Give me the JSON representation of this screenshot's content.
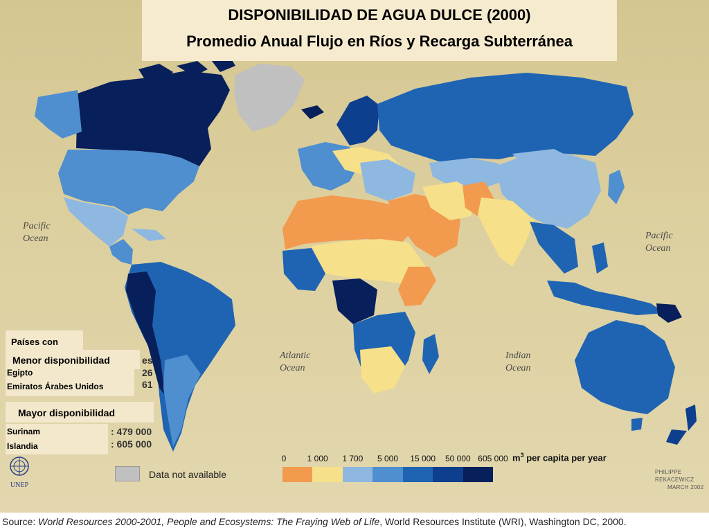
{
  "title": {
    "line1": "DISPONIBILIDAD DE AGUA DULCE (2000)",
    "line2": "Promedio Anual Flujo en Ríos y Recarga Subterránea"
  },
  "oceans": {
    "pacific_left": [
      "Pacific",
      "Ocean"
    ],
    "pacific_right": [
      "Pacific",
      "Ocean"
    ],
    "atlantic": [
      "Atlantic",
      "Ocean"
    ],
    "indian": [
      "Indian",
      "Ocean"
    ]
  },
  "panel": {
    "heading": "Países con",
    "lowest_heading": "Menor disponibilidad",
    "lowest_countries": [
      "Egipto",
      "Emiratos Árabes Unidos"
    ],
    "highest_heading": "Mayor disponibilidad",
    "highest_countries": [
      "Surinam",
      "Islandia"
    ],
    "underlying_values": [
      "es",
      "26",
      "61",
      ": 479 000",
      ": 605 000"
    ]
  },
  "legend": {
    "ticks": [
      "0",
      "1 000",
      "1 700",
      "5 000",
      "15 000",
      "50 000",
      "605 000"
    ],
    "unit_prefix": "m",
    "unit_exp": "3",
    "unit_suffix": " per capita per year",
    "colors": [
      "#f29a4e",
      "#f7e08a",
      "#8fb8e0",
      "#4f8fd0",
      "#1f64b2",
      "#0e3f8e",
      "#071f5a"
    ],
    "na_color": "#c0c0c0",
    "na_label": "Data not available"
  },
  "credit": [
    "PHILIPPE REKACEWICZ",
    "MARCH 2002"
  ],
  "logo_label": "UNEP",
  "source": {
    "prefix": "Source: ",
    "work": "World Resources 2000-2001, People and Ecosystems: The Fraying Web of Life",
    "suffix": ", World Resources Institute (WRI), Washington DC, 2000."
  },
  "map_colors": {
    "unavailable": "#c0c0c0",
    "lt1000": "#f29a4e",
    "lt1700": "#f7e08a",
    "lt5000": "#8fb8e0",
    "lt15000": "#4f8fd0",
    "lt50000": "#1f64b2",
    "lt605000": "#0e3f8e",
    "max": "#071f5a"
  }
}
